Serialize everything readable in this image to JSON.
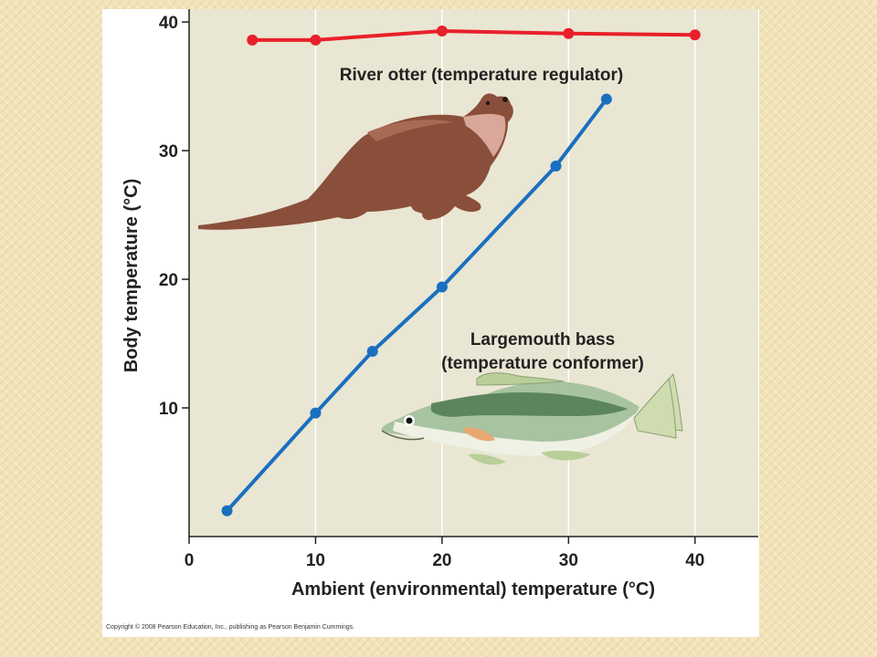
{
  "chart_data": {
    "type": "line",
    "title": "",
    "xlabel": "Ambient (environmental) temperature (°C)",
    "ylabel": "Body temperature (°C)",
    "xlim": [
      0,
      45
    ],
    "ylim": [
      0,
      41
    ],
    "xticks": [
      0,
      10,
      20,
      30,
      40
    ],
    "yticks": [
      10,
      20,
      30,
      40
    ],
    "grid": "vertical",
    "series": [
      {
        "name": "River otter (temperature regulator)",
        "color": "#e8202a",
        "x": [
          5,
          10,
          20,
          30,
          40
        ],
        "y": [
          38.6,
          38.6,
          39.3,
          39.1,
          39.0
        ]
      },
      {
        "name": "Largemouth bass (temperature conformer)",
        "name_lines": [
          "Largemouth bass",
          "(temperature conformer)"
        ],
        "color": "#1a6fbf",
        "x": [
          3,
          10,
          14.5,
          20,
          29,
          33
        ],
        "y": [
          2,
          9.6,
          14.4,
          19.4,
          28.8,
          34
        ]
      }
    ],
    "illustrations": [
      "otter-illustration",
      "bass-fish-illustration"
    ]
  },
  "footer": {
    "copyright": "Copyright © 2008 Pearson Education, Inc., publishing as Pearson Benjamin Cummings."
  }
}
